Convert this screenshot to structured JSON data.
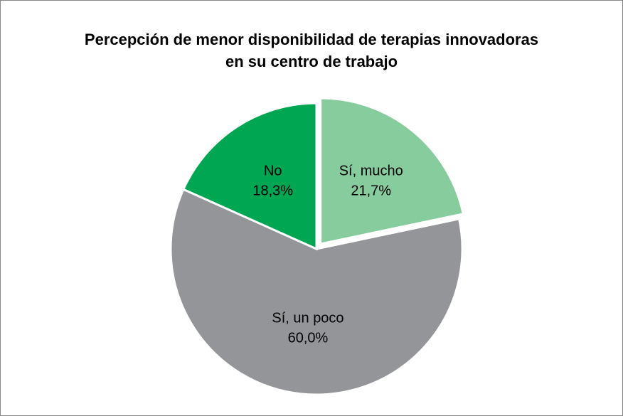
{
  "chart_data": {
    "type": "pie",
    "title": "Percepción de menor disponibilidad de terapias innovadoras en su centro de trabajo",
    "categories": [
      "Sí, mucho",
      "Sí, un poco",
      "No"
    ],
    "values": [
      21.7,
      60.0,
      18.3
    ],
    "value_labels": [
      "21,7%",
      "60,0%",
      "18,3%"
    ],
    "colors": [
      "#86cc9c",
      "#939598",
      "#00a651"
    ],
    "exploded": [
      true,
      false,
      false
    ]
  }
}
